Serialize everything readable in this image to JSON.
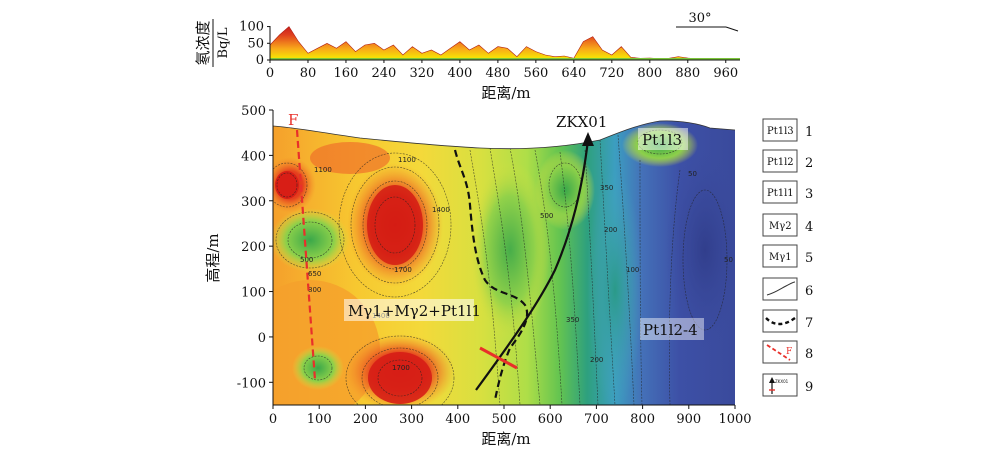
{
  "top_profile": {
    "ylabel_line1": "氡浓度",
    "ylabel_line2": "Bq/L",
    "yticks": [
      "100",
      "50",
      "0"
    ],
    "xticks": [
      "0",
      "80",
      "160",
      "240",
      "320",
      "400",
      "480",
      "560",
      "640",
      "720",
      "800",
      "880",
      "960"
    ],
    "xlabel": "距离/m",
    "angle_label": "30°",
    "chart_data": {
      "type": "area",
      "x": [
        0,
        20,
        40,
        60,
        80,
        100,
        120,
        140,
        160,
        180,
        200,
        220,
        240,
        260,
        280,
        300,
        320,
        340,
        360,
        380,
        400,
        420,
        440,
        460,
        480,
        500,
        520,
        540,
        560,
        580,
        600,
        620,
        640,
        660,
        680,
        700,
        720,
        740,
        760,
        780,
        800,
        820,
        840,
        860,
        880,
        900,
        920,
        940,
        960,
        980
      ],
      "y": [
        45,
        75,
        100,
        55,
        20,
        35,
        50,
        35,
        55,
        25,
        45,
        50,
        30,
        45,
        15,
        40,
        20,
        30,
        15,
        35,
        55,
        30,
        45,
        20,
        40,
        35,
        10,
        40,
        25,
        15,
        10,
        12,
        5,
        55,
        70,
        30,
        15,
        40,
        8,
        5,
        6,
        4,
        5,
        10,
        6,
        3,
        5,
        2,
        3,
        2
      ],
      "xlim": [
        0,
        990
      ],
      "ylim": [
        0,
        120
      ]
    }
  },
  "section": {
    "ylabel": "高程/m",
    "xlabel": "距离/m",
    "xticks": [
      "0",
      "100",
      "200",
      "300",
      "400",
      "500",
      "600",
      "700",
      "800",
      "900",
      "1000"
    ],
    "yticks": [
      "500",
      "400",
      "300",
      "200",
      "100",
      "0",
      "-100"
    ],
    "fault_label": "F",
    "drill_label": "ZKX01",
    "unit_main": "Mγ1+Mγ2+Pt1l1",
    "unit_top": "Pt1l3",
    "unit_bottom": "Pt1l2-4",
    "contour_labels": [
      "1100",
      "1400",
      "1700",
      "500",
      "650",
      "800",
      "1100",
      "1400",
      "1700",
      "350",
      "200",
      "100",
      "50",
      "500",
      "350",
      "200",
      "50"
    ],
    "xlim": [
      0,
      1000
    ],
    "ylim": [
      -150,
      500
    ]
  },
  "legend": [
    {
      "num": "1",
      "text": "Pt1l3"
    },
    {
      "num": "2",
      "text": "Pt1l2"
    },
    {
      "num": "3",
      "text": "Pt1l1"
    },
    {
      "num": "4",
      "text": "Mγ2"
    },
    {
      "num": "5",
      "text": "Mγ1"
    },
    {
      "num": "6",
      "text": ""
    },
    {
      "num": "7",
      "text": ""
    },
    {
      "num": "8",
      "text": "F"
    },
    {
      "num": "9",
      "text": "ZKX01"
    }
  ],
  "colors": {
    "profile_fill_high": "#e03020",
    "profile_fill_low": "#ffd21a",
    "fault": "#e8302a",
    "drill": "#111111",
    "high": "#e03a1e",
    "low": "#3c4ca0"
  }
}
